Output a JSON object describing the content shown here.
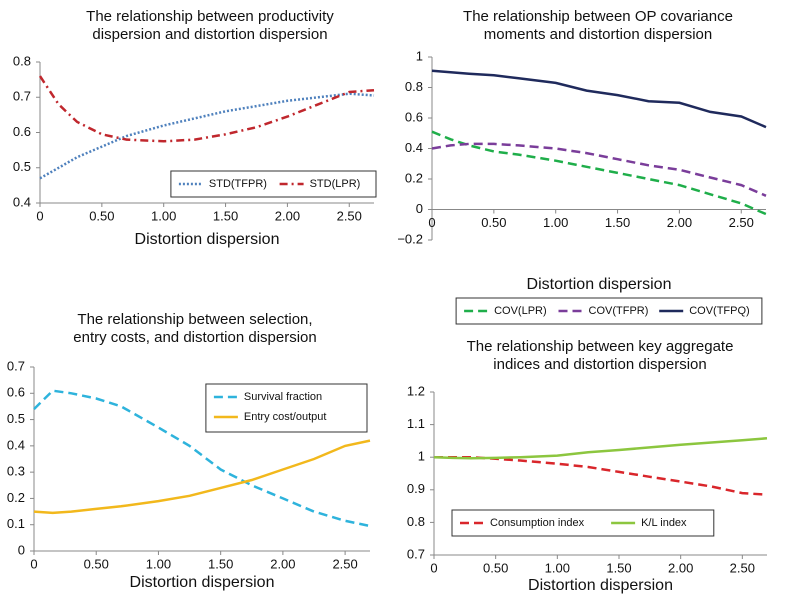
{
  "chart_data": [
    {
      "type": "line",
      "title": "The relationship between productivity\ndispersion and distortion dispersion",
      "x_label": "Distortion dispersion",
      "x": [
        0,
        0.15,
        0.3,
        0.5,
        0.7,
        1.0,
        1.25,
        1.5,
        1.75,
        2.0,
        2.25,
        2.5,
        2.7
      ],
      "series": [
        {
          "name": "STD(TFPR)",
          "color": "#4f81bd",
          "dash": "dotted",
          "values": [
            0.47,
            0.5,
            0.53,
            0.56,
            0.59,
            0.62,
            0.64,
            0.66,
            0.675,
            0.69,
            0.7,
            0.71,
            0.705
          ]
        },
        {
          "name": "STD(LPR)",
          "color": "#c0272d",
          "dash": "dashdot",
          "values": [
            0.76,
            0.68,
            0.63,
            0.595,
            0.58,
            0.575,
            0.58,
            0.595,
            0.615,
            0.645,
            0.68,
            0.715,
            0.72
          ]
        }
      ],
      "xlim": [
        0,
        2.7
      ],
      "xticks": [
        0,
        {
          "value": 0.5,
          "label": "0.50"
        },
        {
          "value": 1,
          "label": "1.00"
        },
        {
          "value": 1.5,
          "label": "1.50"
        },
        {
          "value": 2,
          "label": "2.00"
        },
        {
          "value": 2.5,
          "label": "2.50"
        }
      ],
      "ylim": [
        0.4,
        0.8
      ],
      "yticks": [
        0.4,
        0.5,
        0.6,
        0.7,
        0.8
      ],
      "legend": "lower right",
      "grid": false
    },
    {
      "type": "line",
      "title": "The relationship between OP covariance\nmoments and distortion dispersion",
      "x_label": "Distortion dispersion",
      "x": [
        0,
        0.15,
        0.3,
        0.5,
        0.7,
        1.0,
        1.25,
        1.5,
        1.75,
        2.0,
        2.25,
        2.5,
        2.7
      ],
      "series": [
        {
          "name": "COV(LPR)",
          "color": "#1fae4a",
          "dash": "dashed",
          "values": [
            0.51,
            0.46,
            0.42,
            0.38,
            0.36,
            0.32,
            0.28,
            0.24,
            0.2,
            0.16,
            0.1,
            0.04,
            -0.03
          ]
        },
        {
          "name": "COV(TFPR)",
          "color": "#7a3d9a",
          "dash": "dashed",
          "values": [
            0.4,
            0.42,
            0.43,
            0.43,
            0.42,
            0.4,
            0.37,
            0.33,
            0.29,
            0.26,
            0.21,
            0.16,
            0.09
          ]
        },
        {
          "name": "COV(TFPQ)",
          "color": "#1f2a5c",
          "dash": "solid",
          "values": [
            0.91,
            0.9,
            0.89,
            0.88,
            0.86,
            0.83,
            0.78,
            0.75,
            0.71,
            0.7,
            0.64,
            0.61,
            0.54
          ]
        }
      ],
      "xlim": [
        0,
        2.7
      ],
      "xticks": [
        0,
        {
          "value": 0.5,
          "label": "0.50"
        },
        {
          "value": 1,
          "label": "1.00"
        },
        {
          "value": 1.5,
          "label": "1.50"
        },
        {
          "value": 2,
          "label": "2.00"
        },
        {
          "value": 2.5,
          "label": "2.50"
        }
      ],
      "ylim": [
        -0.2,
        1
      ],
      "yticks": [
        {
          "value": -0.2,
          "label": "−0.2"
        },
        0,
        0.2,
        0.4,
        0.6,
        0.8,
        1
      ],
      "legend": "below",
      "grid": false
    },
    {
      "type": "line",
      "title": "The relationship between selection,\nentry costs, and distortion dispersion",
      "x_label": "Distortion dispersion",
      "x": [
        0,
        0.15,
        0.3,
        0.5,
        0.7,
        1.0,
        1.25,
        1.5,
        1.75,
        2.0,
        2.25,
        2.5,
        2.7
      ],
      "series": [
        {
          "name": "Survival fraction",
          "color": "#2eb3dc",
          "dash": "dashed",
          "values": [
            0.54,
            0.61,
            0.6,
            0.58,
            0.55,
            0.47,
            0.4,
            0.31,
            0.25,
            0.2,
            0.15,
            0.115,
            0.095
          ]
        },
        {
          "name": "Entry cost/output",
          "color": "#f2b81c",
          "dash": "solid",
          "values": [
            0.15,
            0.145,
            0.15,
            0.16,
            0.17,
            0.19,
            0.21,
            0.24,
            0.27,
            0.31,
            0.35,
            0.4,
            0.42
          ]
        }
      ],
      "xlim": [
        0,
        2.7
      ],
      "xticks": [
        0,
        {
          "value": 0.5,
          "label": "0.50"
        },
        {
          "value": 1,
          "label": "1.00"
        },
        {
          "value": 1.5,
          "label": "1.50"
        },
        {
          "value": 2,
          "label": "2.00"
        },
        {
          "value": 2.5,
          "label": "2.50"
        }
      ],
      "ylim": [
        0,
        0.7
      ],
      "yticks": [
        0,
        0.1,
        0.2,
        0.3,
        0.4,
        0.5,
        0.6,
        0.7
      ],
      "legend": "upper right",
      "grid": false
    },
    {
      "type": "line",
      "title": "The relationship between key aggregate\nindices and distortion dispersion",
      "x_label": "Distortion dispersion",
      "x": [
        0,
        0.15,
        0.3,
        0.5,
        0.7,
        1.0,
        1.25,
        1.5,
        1.75,
        2.0,
        2.25,
        2.5,
        2.7
      ],
      "series": [
        {
          "name": "Consumption index",
          "color": "#d9262b",
          "dash": "dashed",
          "values": [
            1.0,
            1.0,
            1.0,
            0.995,
            0.99,
            0.98,
            0.97,
            0.955,
            0.94,
            0.925,
            0.91,
            0.89,
            0.885
          ]
        },
        {
          "name": "K/L index",
          "color": "#8cc63f",
          "dash": "solid",
          "values": [
            1.0,
            0.998,
            0.997,
            0.998,
            1.0,
            1.005,
            1.015,
            1.022,
            1.03,
            1.038,
            1.045,
            1.052,
            1.058
          ]
        }
      ],
      "xlim": [
        0,
        2.7
      ],
      "xticks": [
        0,
        {
          "value": 0.5,
          "label": "0.50"
        },
        {
          "value": 1,
          "label": "1.00"
        },
        {
          "value": 1.5,
          "label": "1.50"
        },
        {
          "value": 2,
          "label": "2.00"
        },
        {
          "value": 2.5,
          "label": "2.50"
        }
      ],
      "ylim": [
        0.7,
        1.2
      ],
      "yticks": [
        0.7,
        0.8,
        0.9,
        1,
        1.1,
        1.2
      ],
      "legend": "lower left",
      "grid": false
    }
  ]
}
